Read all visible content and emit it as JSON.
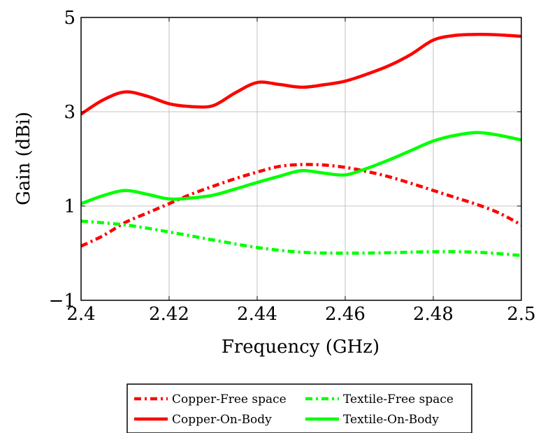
{
  "chart_data": {
    "type": "line",
    "title": "",
    "xlabel": "Frequency (GHz)",
    "ylabel": "Gain (dBi)",
    "xlim": [
      2.4,
      2.5
    ],
    "ylim": [
      -1,
      5
    ],
    "xticks": [
      2.4,
      2.42,
      2.44,
      2.46,
      2.48,
      2.5
    ],
    "xtick_labels": [
      "2.4",
      "2.42",
      "2.44",
      "2.46",
      "2.48",
      "2.5"
    ],
    "yticks": [
      -1,
      1,
      3,
      5
    ],
    "ytick_labels": [
      "−1",
      "1",
      "3",
      "5"
    ],
    "grid": true,
    "legend_position": "bottom-center",
    "series": [
      {
        "name": "Copper-Free space",
        "color": "#ff0000",
        "style": "dashdot",
        "x": [
          2.4,
          2.405,
          2.41,
          2.415,
          2.42,
          2.425,
          2.43,
          2.435,
          2.44,
          2.445,
          2.45,
          2.455,
          2.46,
          2.465,
          2.47,
          2.475,
          2.48,
          2.485,
          2.49,
          2.495,
          2.5
        ],
        "y": [
          0.15,
          0.37,
          0.65,
          0.85,
          1.05,
          1.25,
          1.42,
          1.58,
          1.72,
          1.84,
          1.88,
          1.87,
          1.82,
          1.73,
          1.62,
          1.48,
          1.33,
          1.18,
          1.03,
          0.85,
          0.6
        ]
      },
      {
        "name": "Textile-Free space",
        "color": "#00ff00",
        "style": "dashdot",
        "x": [
          2.4,
          2.41,
          2.42,
          2.43,
          2.44,
          2.45,
          2.46,
          2.47,
          2.48,
          2.49,
          2.5
        ],
        "y": [
          0.68,
          0.6,
          0.45,
          0.28,
          0.12,
          0.02,
          0.0,
          0.01,
          0.03,
          0.02,
          -0.05
        ]
      },
      {
        "name": "Copper-On-Body",
        "color": "#ff0000",
        "style": "solid",
        "x": [
          2.4,
          2.405,
          2.41,
          2.415,
          2.42,
          2.425,
          2.43,
          2.435,
          2.44,
          2.445,
          2.45,
          2.455,
          2.46,
          2.465,
          2.47,
          2.475,
          2.48,
          2.485,
          2.49,
          2.495,
          2.5
        ],
        "y": [
          2.95,
          3.25,
          3.42,
          3.33,
          3.17,
          3.11,
          3.13,
          3.4,
          3.62,
          3.58,
          3.52,
          3.57,
          3.65,
          3.8,
          3.98,
          4.22,
          4.52,
          4.62,
          4.64,
          4.63,
          4.6
        ]
      },
      {
        "name": "Textile-On-Body",
        "color": "#00ff00",
        "style": "solid",
        "x": [
          2.4,
          2.405,
          2.41,
          2.415,
          2.42,
          2.425,
          2.43,
          2.435,
          2.44,
          2.445,
          2.45,
          2.455,
          2.46,
          2.465,
          2.47,
          2.475,
          2.48,
          2.485,
          2.49,
          2.495,
          2.5
        ],
        "y": [
          1.05,
          1.22,
          1.33,
          1.25,
          1.15,
          1.17,
          1.23,
          1.36,
          1.5,
          1.63,
          1.75,
          1.7,
          1.66,
          1.8,
          1.98,
          2.18,
          2.38,
          2.5,
          2.56,
          2.5,
          2.4
        ]
      }
    ]
  }
}
